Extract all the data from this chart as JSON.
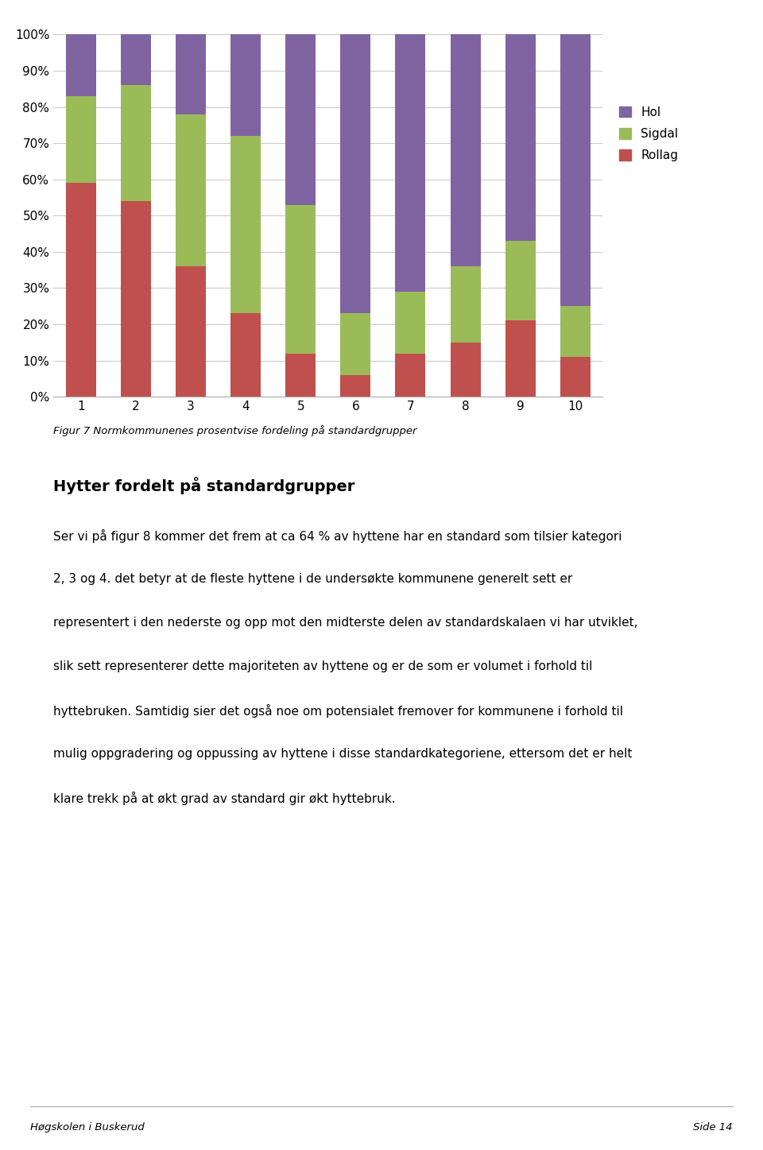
{
  "categories": [
    1,
    2,
    3,
    4,
    5,
    6,
    7,
    8,
    9,
    10
  ],
  "rollag": [
    59,
    54,
    36,
    23,
    12,
    6,
    12,
    15,
    21,
    11
  ],
  "sigdal": [
    24,
    32,
    42,
    49,
    41,
    17,
    17,
    21,
    22,
    14
  ],
  "hol": [
    17,
    14,
    22,
    28,
    47,
    77,
    71,
    64,
    57,
    75
  ],
  "colors": {
    "Rollag": "#c0504d",
    "Sigdal": "#9bbb59",
    "Hol": "#8064a2"
  },
  "figure_caption": "Figur 7 Normkommunenes prosentvise fordeling på standardgrupper",
  "section_title": "Hytter fordelt på standardgrupper",
  "body_lines": [
    "Ser vi på figur 8 kommer det frem at ca 64 % av hyttene har en standard som tilsier kategori",
    "2, 3 og 4. det betyr at de fleste hyttene i de undersøkte kommunene generelt sett er",
    "representert i den nederste og opp mot den midterste delen av standardskalaen vi har utviklet,",
    "slik sett representerer dette majoriteten av hyttene og er de som er volumet i forhold til",
    "hyttebruken. Samtidig sier det også noe om potensialet fremover for kommunene i forhold til",
    "mulig oppgradering og oppussing av hyttene i disse standardkategoriene, ettersom det er helt",
    "klare trekk på at økt grad av standard gir økt hyttebruk."
  ],
  "footer_left": "Høgskolen i Buskerud",
  "footer_right": "Side 14",
  "background_color": "#ffffff",
  "bar_width": 0.55,
  "ylim": [
    0,
    100
  ],
  "figsize": [
    9.6,
    14.47
  ],
  "dpi": 100
}
